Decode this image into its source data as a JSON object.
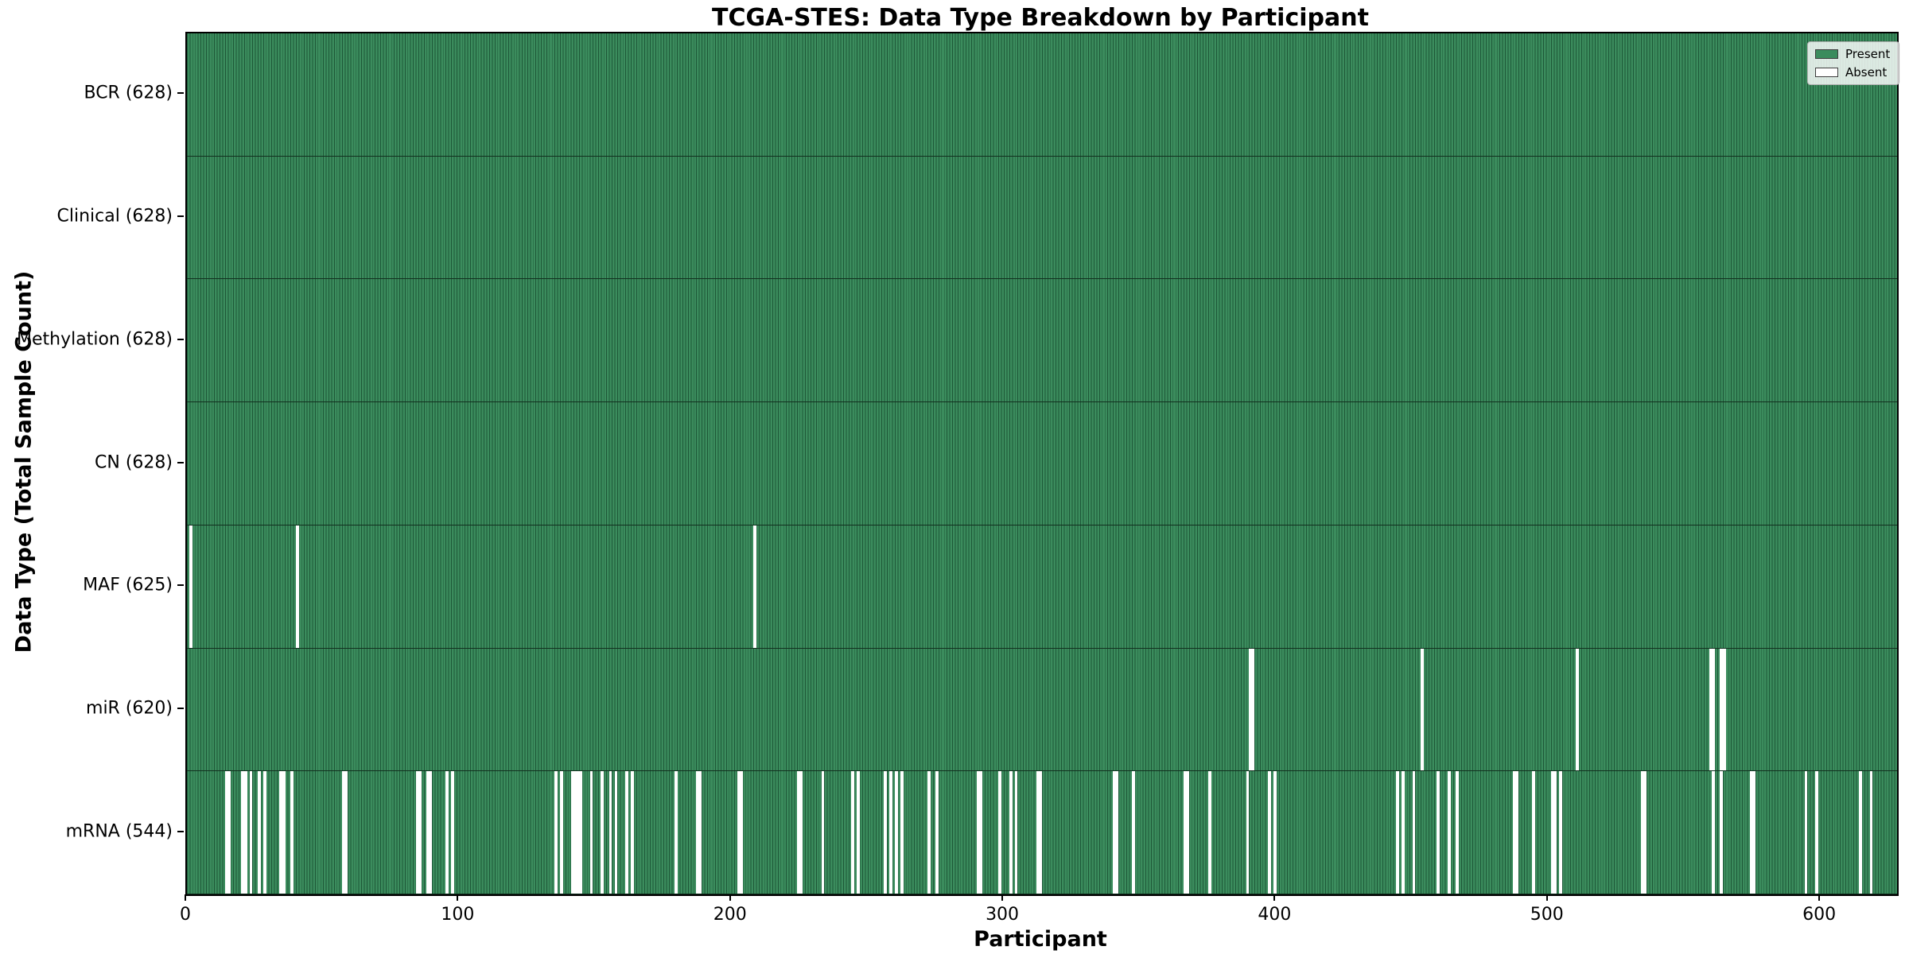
{
  "chart_data": {
    "type": "heatmap",
    "title": "TCGA-STES: Data Type Breakdown by Participant",
    "xlabel": "Participant",
    "ylabel": "Data Type (Total Sample Count)",
    "x_ticks": [
      0,
      100,
      200,
      300,
      400,
      500,
      600
    ],
    "x_range": [
      0,
      628
    ],
    "n_participants": 628,
    "legend": {
      "position": "upper right",
      "entries": [
        {
          "label": "Present",
          "color": "#3b8c5d"
        },
        {
          "label": "Absent",
          "color": "#ffffff"
        }
      ]
    },
    "colors": {
      "present_fill": "#3b8c5d",
      "present_edge": "#1d5737",
      "absent": "#ffffff",
      "row_separator": "#12301f",
      "spine": "#000000"
    },
    "rows": [
      {
        "label": "BCR (628)",
        "name": "BCR",
        "present_count": 628,
        "absent_participants": []
      },
      {
        "label": "Clinical (628)",
        "name": "Clinical",
        "present_count": 628,
        "absent_participants": []
      },
      {
        "label": "Methylation (628)",
        "name": "Methylation",
        "present_count": 628,
        "absent_participants": []
      },
      {
        "label": "CN (628)",
        "name": "CN",
        "present_count": 628,
        "absent_participants": []
      },
      {
        "label": "MAF (625)",
        "name": "MAF",
        "present_count": 625,
        "absent_participants": [
          1,
          40,
          208
        ]
      },
      {
        "label": "miR (620)",
        "name": "miR",
        "present_count": 620,
        "absent_participants": [
          390,
          391,
          453,
          510,
          559,
          560,
          563,
          564
        ]
      },
      {
        "label": "mRNA (544)",
        "name": "mRNA",
        "present_count": 544,
        "absent_participants": [
          14,
          15,
          20,
          21,
          23,
          26,
          28,
          34,
          35,
          38,
          57,
          58,
          84,
          85,
          88,
          89,
          95,
          97,
          135,
          137,
          141,
          142,
          143,
          144,
          148,
          152,
          155,
          157,
          161,
          163,
          179,
          187,
          188,
          202,
          203,
          224,
          225,
          233,
          244,
          246,
          256,
          258,
          260,
          262,
          272,
          275,
          290,
          291,
          298,
          302,
          304,
          312,
          313,
          340,
          341,
          347,
          366,
          367,
          375,
          389,
          397,
          399,
          444,
          446,
          450,
          459,
          463,
          466,
          487,
          488,
          494,
          501,
          502,
          504,
          534,
          535,
          560,
          563,
          574,
          575,
          594,
          598,
          614,
          618
        ]
      }
    ]
  }
}
